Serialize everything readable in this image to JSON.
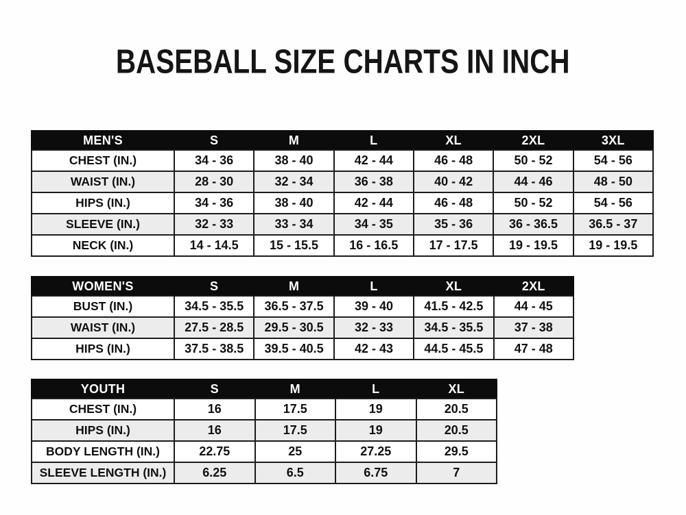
{
  "page": {
    "title": "BASEBALL SIZE CHARTS IN INCH"
  },
  "colors": {
    "header_bg": "#0c0c0c",
    "header_text": "#ffffff",
    "row_alt_bg": "#ececec",
    "border": "#1c1c1c",
    "text": "#101010",
    "background": "#ffffff"
  },
  "chart_data": [
    {
      "type": "table",
      "group_label": "MEN'S",
      "size_columns": [
        "S",
        "M",
        "L",
        "XL",
        "2XL",
        "3XL"
      ],
      "rows": [
        {
          "label": "CHEST (IN.)",
          "values": [
            "34 - 36",
            "38 - 40",
            "42 - 44",
            "46 - 48",
            "50 - 52",
            "54 - 56"
          ]
        },
        {
          "label": "WAIST (IN.)",
          "values": [
            "28 - 30",
            "32 - 34",
            "36 - 38",
            "40 - 42",
            "44 - 46",
            "48 - 50"
          ]
        },
        {
          "label": "HIPS (IN.)",
          "values": [
            "34 - 36",
            "38 - 40",
            "42 - 44",
            "46 - 48",
            "50 - 52",
            "54 - 56"
          ]
        },
        {
          "label": "SLEEVE (IN.)",
          "values": [
            "32 - 33",
            "33 - 34",
            "34 - 35",
            "35 - 36",
            "36 - 36.5",
            "36.5 - 37"
          ]
        },
        {
          "label": "NECK (IN.)",
          "values": [
            "14 - 14.5",
            "15 - 15.5",
            "16 - 16.5",
            "17 - 17.5",
            "19 - 19.5",
            "19 - 19.5"
          ]
        }
      ]
    },
    {
      "type": "table",
      "group_label": "WOMEN'S",
      "size_columns": [
        "S",
        "M",
        "L",
        "XL",
        "2XL"
      ],
      "rows": [
        {
          "label": "BUST (IN.)",
          "values": [
            "34.5 - 35.5",
            "36.5 - 37.5",
            "39 - 40",
            "41.5 - 42.5",
            "44 - 45"
          ]
        },
        {
          "label": "WAIST (IN.)",
          "values": [
            "27.5 - 28.5",
            "29.5 - 30.5",
            "32 - 33",
            "34.5 - 35.5",
            "37 - 38"
          ]
        },
        {
          "label": "HIPS (IN.)",
          "values": [
            "37.5 - 38.5",
            "39.5 - 40.5",
            "42 - 43",
            "44.5 - 45.5",
            "47 - 48"
          ]
        }
      ]
    },
    {
      "type": "table",
      "group_label": "YOUTH",
      "size_columns": [
        "S",
        "M",
        "L",
        "XL"
      ],
      "rows": [
        {
          "label": "CHEST (IN.)",
          "values": [
            "16",
            "17.5",
            "19",
            "20.5"
          ]
        },
        {
          "label": "HIPS (IN.)",
          "values": [
            "16",
            "17.5",
            "19",
            "20.5"
          ]
        },
        {
          "label": "BODY LENGTH (IN.)",
          "values": [
            "22.75",
            "25",
            "27.25",
            "29.5"
          ]
        },
        {
          "label": "SLEEVE LENGTH (IN.)",
          "values": [
            "6.25",
            "6.5",
            "6.75",
            "7"
          ]
        }
      ]
    }
  ]
}
